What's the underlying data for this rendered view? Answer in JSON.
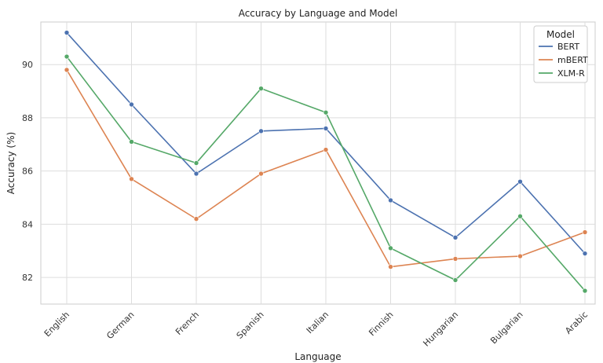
{
  "chart_data": {
    "type": "line",
    "title": "Accuracy by Language and Model",
    "xlabel": "Language",
    "ylabel": "Accuracy (%)",
    "categories": [
      "English",
      "German",
      "French",
      "Spanish",
      "Italian",
      "Finnish",
      "Hungarian",
      "Bulgarian",
      "Arabic"
    ],
    "ylim": [
      81.0,
      91.6
    ],
    "yticks": [
      "82",
      "84",
      "86",
      "88",
      "90"
    ],
    "grid": true,
    "legend_title": "Model",
    "legend_position": "top-right",
    "series": [
      {
        "name": "BERT",
        "color": "#4c72b0",
        "values": [
          91.2,
          88.5,
          85.9,
          87.5,
          87.6,
          84.9,
          83.5,
          85.6,
          82.9
        ]
      },
      {
        "name": "mBERT",
        "color": "#dd8452",
        "values": [
          89.8,
          85.7,
          84.2,
          85.9,
          86.8,
          82.4,
          82.7,
          82.8,
          83.7
        ]
      },
      {
        "name": "XLM-R",
        "color": "#55a868",
        "values": [
          90.3,
          87.1,
          86.3,
          89.1,
          88.2,
          83.1,
          81.9,
          84.3,
          81.5
        ]
      }
    ]
  }
}
